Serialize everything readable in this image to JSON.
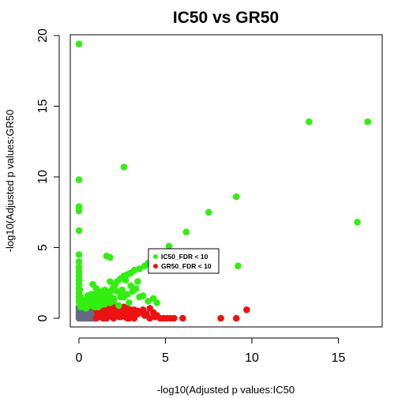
{
  "chart_data": {
    "type": "scatter",
    "title": "IC50 vs GR50",
    "xlabel": "-log10(Adjusted p values:IC50",
    "ylabel": "-log10(Adjusted p values:GR50",
    "xlim": [
      0,
      17
    ],
    "ylim": [
      0,
      20
    ],
    "x_ticks": [
      0,
      5,
      10,
      15
    ],
    "y_ticks": [
      0,
      5,
      10,
      15,
      20
    ],
    "legend": {
      "placement": "center",
      "entries": [
        "IC50_FDR < 10",
        "GR50_FDR < 10"
      ]
    },
    "colors": {
      "IC50_FDR < 10": "#33ee11",
      "GR50_FDR < 10": "#ee1111",
      "neither": "#646b82"
    },
    "series": [
      {
        "name": "IC50_FDR < 10",
        "x": [
          0.0,
          0.0,
          0.0,
          0.0,
          0.0,
          0.0,
          0.0,
          0.0,
          0.0,
          0.0,
          0.0,
          0.0,
          0.0,
          0.0,
          0.0,
          0.0,
          0.05,
          0.05,
          0.1,
          0.1,
          0.15,
          0.2,
          0.3,
          0.4,
          0.5,
          0.5,
          0.6,
          0.7,
          0.8,
          0.9,
          1.0,
          1.1,
          1.2,
          1.3,
          1.4,
          1.5,
          1.6,
          1.7,
          1.8,
          1.9,
          2.0,
          2.1,
          2.2,
          2.4,
          2.6,
          2.8,
          3.0,
          3.2,
          3.5,
          3.8,
          4.0,
          2.5,
          3.0,
          3.4,
          1.5,
          2.0,
          2.5,
          3.5,
          4.0,
          4.5,
          0.5,
          0.8,
          1.1,
          1.4,
          1.7,
          2.0,
          2.3,
          2.6,
          2.9,
          3.3,
          1.0,
          1.3,
          1.8,
          2.2,
          2.7,
          0.4,
          0.6,
          0.9,
          1.2,
          1.5,
          1.8,
          2.0,
          2.4,
          2.8,
          3.1,
          3.7,
          4.3,
          1.6,
          1.8,
          4.5,
          5.2,
          6.2,
          7.5,
          9.1,
          9.2,
          2.6,
          13.3,
          16.7,
          16.1
        ],
        "y": [
          19.4,
          9.8,
          7.9,
          7.6,
          6.2,
          4.5,
          4.0,
          3.6,
          3.3,
          3.0,
          2.7,
          2.4,
          2.1,
          1.8,
          1.5,
          1.2,
          1.0,
          2.0,
          0.8,
          1.5,
          1.2,
          0.9,
          1.0,
          1.3,
          1.6,
          1.1,
          1.4,
          1.7,
          1.2,
          1.5,
          1.8,
          1.2,
          1.4,
          1.7,
          1.4,
          1.6,
          1.9,
          1.5,
          1.8,
          2.0,
          2.2,
          2.4,
          2.6,
          2.8,
          3.0,
          3.1,
          3.2,
          3.4,
          3.5,
          3.7,
          3.9,
          2.0,
          2.3,
          2.6,
          2.0,
          1.4,
          1.8,
          1.5,
          1.2,
          1.1,
          1.1,
          2.4,
          0.8,
          1.0,
          1.3,
          1.2,
          0.9,
          1.5,
          1.1,
          2.1,
          2.1,
          1.9,
          2.6,
          1.9,
          2.7,
          0.7,
          0.9,
          0.8,
          0.9,
          1.0,
          1.1,
          1.3,
          1.5,
          1.7,
          1.9,
          1.6,
          1.4,
          4.4,
          4.3,
          4.4,
          5.1,
          6.1,
          7.5,
          8.6,
          3.7,
          10.7,
          13.9,
          13.9,
          6.8
        ]
      },
      {
        "name": "GR50_FDR < 10",
        "x": [
          1.0,
          1.05,
          1.1,
          1.15,
          1.2,
          1.3,
          1.4,
          1.5,
          1.6,
          1.7,
          1.8,
          1.9,
          2.0,
          2.1,
          2.2,
          2.3,
          2.4,
          2.5,
          2.6,
          2.7,
          2.8,
          2.9,
          3.0,
          3.1,
          3.2,
          3.3,
          3.5,
          3.7,
          3.9,
          4.1,
          4.3,
          4.5,
          4.7,
          4.9,
          5.1,
          5.3,
          5.5,
          6.0,
          8.2,
          9.1,
          9.7,
          1.0,
          1.1,
          1.2,
          1.3,
          1.4,
          1.5,
          1.6,
          1.7,
          1.8,
          1.9,
          2.0,
          2.1,
          2.2,
          2.3,
          2.4,
          2.5,
          2.6,
          2.7,
          2.8,
          2.9,
          3.0,
          3.2,
          3.4,
          3.6,
          1.1,
          1.3,
          1.5,
          1.7,
          1.9,
          2.1,
          2.3,
          2.5,
          2.7,
          2.9,
          1.2,
          1.6,
          2.0,
          2.4,
          2.8,
          3.2,
          4.1,
          4.4,
          4.9,
          1.4,
          1.8,
          2.2,
          2.6,
          3.0,
          3.4,
          3.8
        ],
        "y": [
          0.0,
          0.1,
          0.2,
          0.3,
          0.4,
          0.5,
          0.6,
          0.7,
          0.8,
          0.9,
          0.6,
          0.8,
          0.7,
          0.5,
          0.6,
          0.4,
          0.3,
          0.5,
          0.6,
          0.3,
          0.4,
          0.5,
          0.3,
          0.4,
          0.2,
          0.5,
          0.4,
          0.6,
          0.3,
          0.7,
          0.4,
          0.2,
          0.0,
          0.0,
          0.0,
          0.0,
          0.0,
          0.0,
          0.0,
          0.0,
          0.6,
          0.6,
          0.8,
          0.9,
          1.0,
          0.9,
          0.8,
          0.7,
          0.9,
          1.0,
          0.8,
          0.9,
          0.6,
          0.8,
          0.9,
          0.7,
          0.5,
          0.8,
          0.6,
          0.7,
          0.5,
          0.6,
          0.6,
          0.5,
          0.4,
          0.3,
          0.2,
          0.3,
          0.2,
          0.1,
          0.2,
          0.1,
          0.2,
          0.1,
          0.0,
          0.1,
          0.0,
          0.0,
          0.1,
          0.0,
          0.0,
          0.0,
          0.1,
          0.0,
          0.0,
          0.3,
          0.2,
          0.3,
          0.2,
          0.3,
          0.2
        ]
      },
      {
        "name": "",
        "x": [
          0.0,
          0.1,
          0.2,
          0.3,
          0.4,
          0.5,
          0.6,
          0.7,
          0.8,
          0.9,
          0.0,
          0.1,
          0.2,
          0.3,
          0.4,
          0.5,
          0.6,
          0.7,
          0.8,
          0.9,
          0.0,
          0.1,
          0.2,
          0.3,
          0.4,
          0.5,
          0.6,
          0.7,
          0.8,
          0.9,
          0.0,
          0.1,
          0.2,
          0.3,
          0.4,
          0.5,
          0.6,
          0.7,
          0.8,
          0.9,
          0.0,
          0.1,
          0.2,
          0.3,
          0.4,
          0.5,
          0.6,
          0.7,
          0.8,
          0.9
        ],
        "y": [
          0.0,
          0.0,
          0.0,
          0.0,
          0.0,
          0.0,
          0.0,
          0.0,
          0.0,
          0.0,
          0.2,
          0.2,
          0.2,
          0.2,
          0.2,
          0.2,
          0.2,
          0.2,
          0.2,
          0.2,
          0.4,
          0.4,
          0.4,
          0.4,
          0.4,
          0.4,
          0.4,
          0.4,
          0.4,
          0.4,
          0.6,
          0.6,
          0.6,
          0.6,
          0.6,
          0.6,
          0.6,
          0.6,
          0.6,
          0.6,
          0.8,
          0.8,
          0.8,
          0.8,
          0.8,
          0.8,
          0.8,
          0.8,
          0.8,
          0.8
        ]
      }
    ]
  }
}
